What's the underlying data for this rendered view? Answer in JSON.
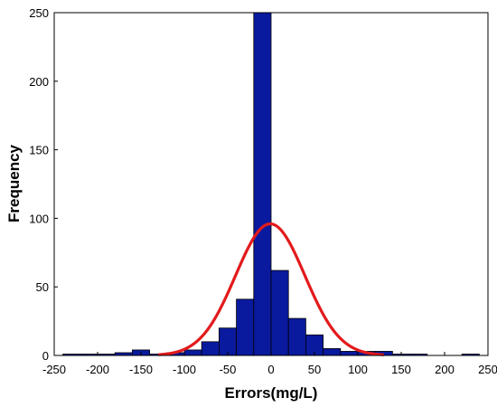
{
  "chart_data": {
    "type": "bar",
    "title": "",
    "xlabel": "Errors(mg/L)",
    "ylabel": "Frequency",
    "xlim": [
      -250,
      250
    ],
    "ylim": [
      0,
      250
    ],
    "x_ticks": [
      -250,
      -200,
      -150,
      -100,
      -50,
      0,
      50,
      100,
      150,
      200,
      250
    ],
    "y_ticks": [
      0,
      50,
      100,
      150,
      200,
      250
    ],
    "x_tick_labels": [
      "-250",
      "-200",
      "-150",
      "-100",
      "-50",
      "0",
      "50",
      "100",
      "150",
      "200",
      "250"
    ],
    "y_tick_labels": [
      "0",
      "50",
      "100",
      "150",
      "200",
      "250"
    ],
    "grid": false,
    "legend": "none",
    "bin_width": 20,
    "bins": [
      {
        "center": -230,
        "count": 1
      },
      {
        "center": -210,
        "count": 1
      },
      {
        "center": -190,
        "count": 1
      },
      {
        "center": -170,
        "count": 2
      },
      {
        "center": -150,
        "count": 4
      },
      {
        "center": -130,
        "count": 1
      },
      {
        "center": -110,
        "count": 2
      },
      {
        "center": -90,
        "count": 4
      },
      {
        "center": -70,
        "count": 10
      },
      {
        "center": -50,
        "count": 20
      },
      {
        "center": -30,
        "count": 41
      },
      {
        "center": -10,
        "count": 250
      },
      {
        "center": 10,
        "count": 62
      },
      {
        "center": 30,
        "count": 27
      },
      {
        "center": 50,
        "count": 15
      },
      {
        "center": 70,
        "count": 5
      },
      {
        "center": 90,
        "count": 3
      },
      {
        "center": 110,
        "count": 3
      },
      {
        "center": 130,
        "count": 3
      },
      {
        "center": 150,
        "count": 1
      },
      {
        "center": 170,
        "count": 1
      },
      {
        "center": 230,
        "count": 1
      }
    ],
    "fit_curve": {
      "type": "normal",
      "mean": -1,
      "sd": 40,
      "peak": 96,
      "color": "#e31a1c"
    },
    "bar_color": "#0a1a9e",
    "bar_edge_color": "#000000"
  }
}
